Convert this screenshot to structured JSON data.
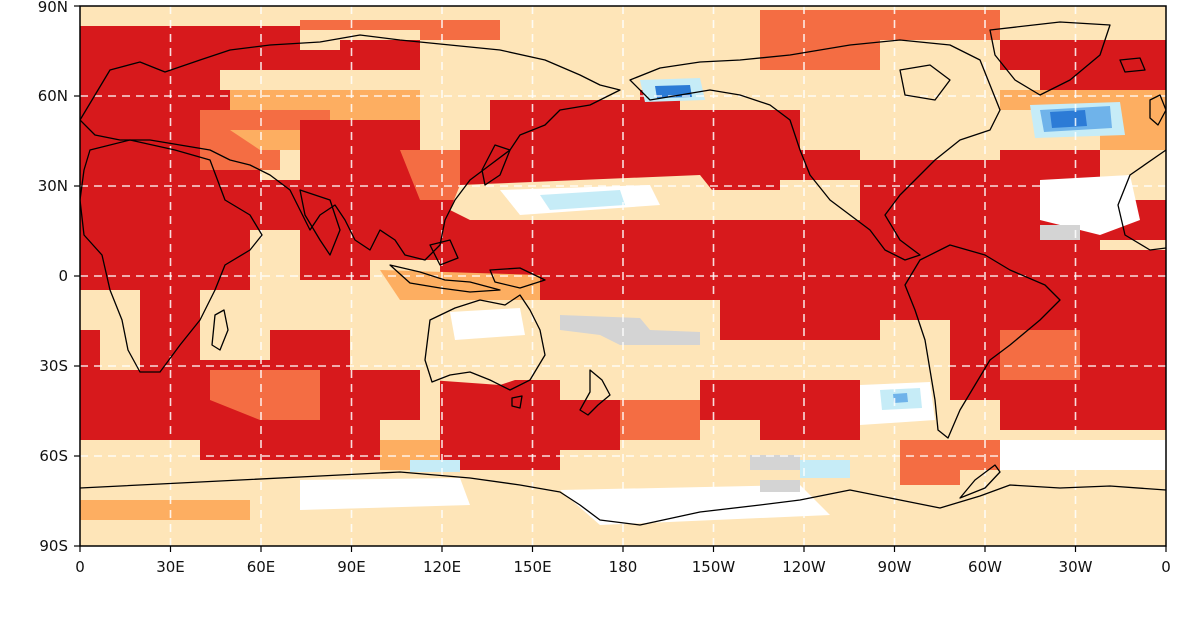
{
  "map": {
    "projection": "plate-carree",
    "lon_ticks": [
      0,
      30,
      60,
      90,
      120,
      150,
      180,
      210,
      240,
      270,
      300,
      330,
      360
    ],
    "lat_ticks": [
      90,
      60,
      30,
      0,
      -30,
      -60,
      -90
    ],
    "lon_labels": [
      "0",
      "30E",
      "60E",
      "90E",
      "120E",
      "150E",
      "180",
      "150W",
      "120W",
      "90W",
      "60W",
      "30W",
      "0"
    ],
    "lat_labels": [
      "90N",
      "60N",
      "30N",
      "0",
      "30S",
      "60S",
      "90S"
    ],
    "gridlines": "dashed",
    "colors": {
      "level_4": "#d7191c",
      "level_3": "#f46d43",
      "level_2": "#fdae61",
      "level_1": "#fee5b8",
      "neutral": "#ffffff",
      "grey": "#d4d4d4",
      "cool_1": "#c6ecf7",
      "cool_2": "#6fb3ea",
      "cool_3": "#2c7bd6"
    }
  }
}
